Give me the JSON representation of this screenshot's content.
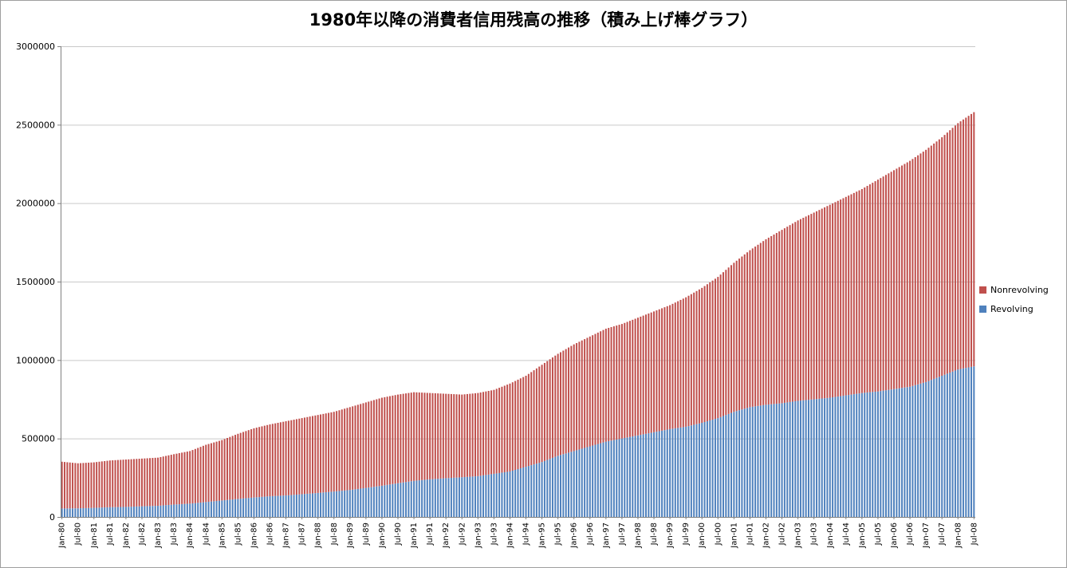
{
  "title": "1980年以降の消費者信用残高の推移（積み上げ棒グラフ）",
  "chart_data": {
    "type": "bar",
    "stacked": true,
    "bar_interval": "monthly",
    "grid": true,
    "legend_position": "right",
    "ylim": [
      0,
      3000000
    ],
    "y_ticks": [
      0,
      500000,
      1000000,
      1500000,
      2000000,
      2500000,
      3000000
    ],
    "categories": [
      "Jan-80",
      "Jul-80",
      "Jan-81",
      "Jul-81",
      "Jan-82",
      "Jul-82",
      "Jan-83",
      "Jul-83",
      "Jan-84",
      "Jul-84",
      "Jan-85",
      "Jul-85",
      "Jan-86",
      "Jul-86",
      "Jan-87",
      "Jul-87",
      "Jan-88",
      "Jul-88",
      "Jan-89",
      "Jul-89",
      "Jan-90",
      "Jul-90",
      "Jan-91",
      "Jul-91",
      "Jan-92",
      "Jul-92",
      "Jan-93",
      "Jul-93",
      "Jan-94",
      "Jul-94",
      "Jan-95",
      "Jul-95",
      "Jan-96",
      "Jul-96",
      "Jan-97",
      "Jul-97",
      "Jan-98",
      "Jul-98",
      "Jan-99",
      "Jul-99",
      "Jan-00",
      "Jul-00",
      "Jan-01",
      "Jul-01",
      "Jan-02",
      "Jul-02",
      "Jan-03",
      "Jul-03",
      "Jan-04",
      "Jul-04",
      "Jan-05",
      "Jul-05",
      "Jan-06",
      "Jul-06",
      "Jan-07",
      "Jul-07",
      "Jan-08",
      "Jul-08"
    ],
    "series": [
      {
        "name": "Revolving",
        "color": "#4F81BD",
        "values": [
          54000,
          55000,
          58000,
          62000,
          64000,
          68000,
          71000,
          79000,
          85000,
          95000,
          105000,
          115000,
          124000,
          132000,
          137000,
          145000,
          153000,
          162000,
          172000,
          185000,
          199000,
          215000,
          230000,
          240000,
          247000,
          253000,
          260000,
          275000,
          290000,
          320000,
          350000,
          390000,
          420000,
          450000,
          480000,
          500000,
          520000,
          540000,
          560000,
          575000,
          600000,
          630000,
          670000,
          700000,
          715000,
          725000,
          740000,
          750000,
          760000,
          775000,
          790000,
          800000,
          815000,
          830000,
          860000,
          900000,
          940000,
          960000
        ]
      },
      {
        "name": "Nonrevolving",
        "color": "#C0504D",
        "values": [
          298000,
          287000,
          290000,
          298000,
          302000,
          304000,
          307000,
          321000,
          335000,
          365000,
          385000,
          415000,
          441000,
          458000,
          473000,
          485000,
          497000,
          508000,
          528000,
          545000,
          561000,
          565000,
          565000,
          550000,
          538000,
          527000,
          530000,
          535000,
          560000,
          580000,
          620000,
          650000,
          680000,
          700000,
          720000,
          730000,
          750000,
          770000,
          790000,
          825000,
          860000,
          900000,
          950000,
          1000000,
          1055000,
          1105000,
          1150000,
          1190000,
          1230000,
          1265000,
          1300000,
          1350000,
          1395000,
          1440000,
          1480000,
          1520000,
          1570000,
          1620000
        ]
      }
    ]
  }
}
